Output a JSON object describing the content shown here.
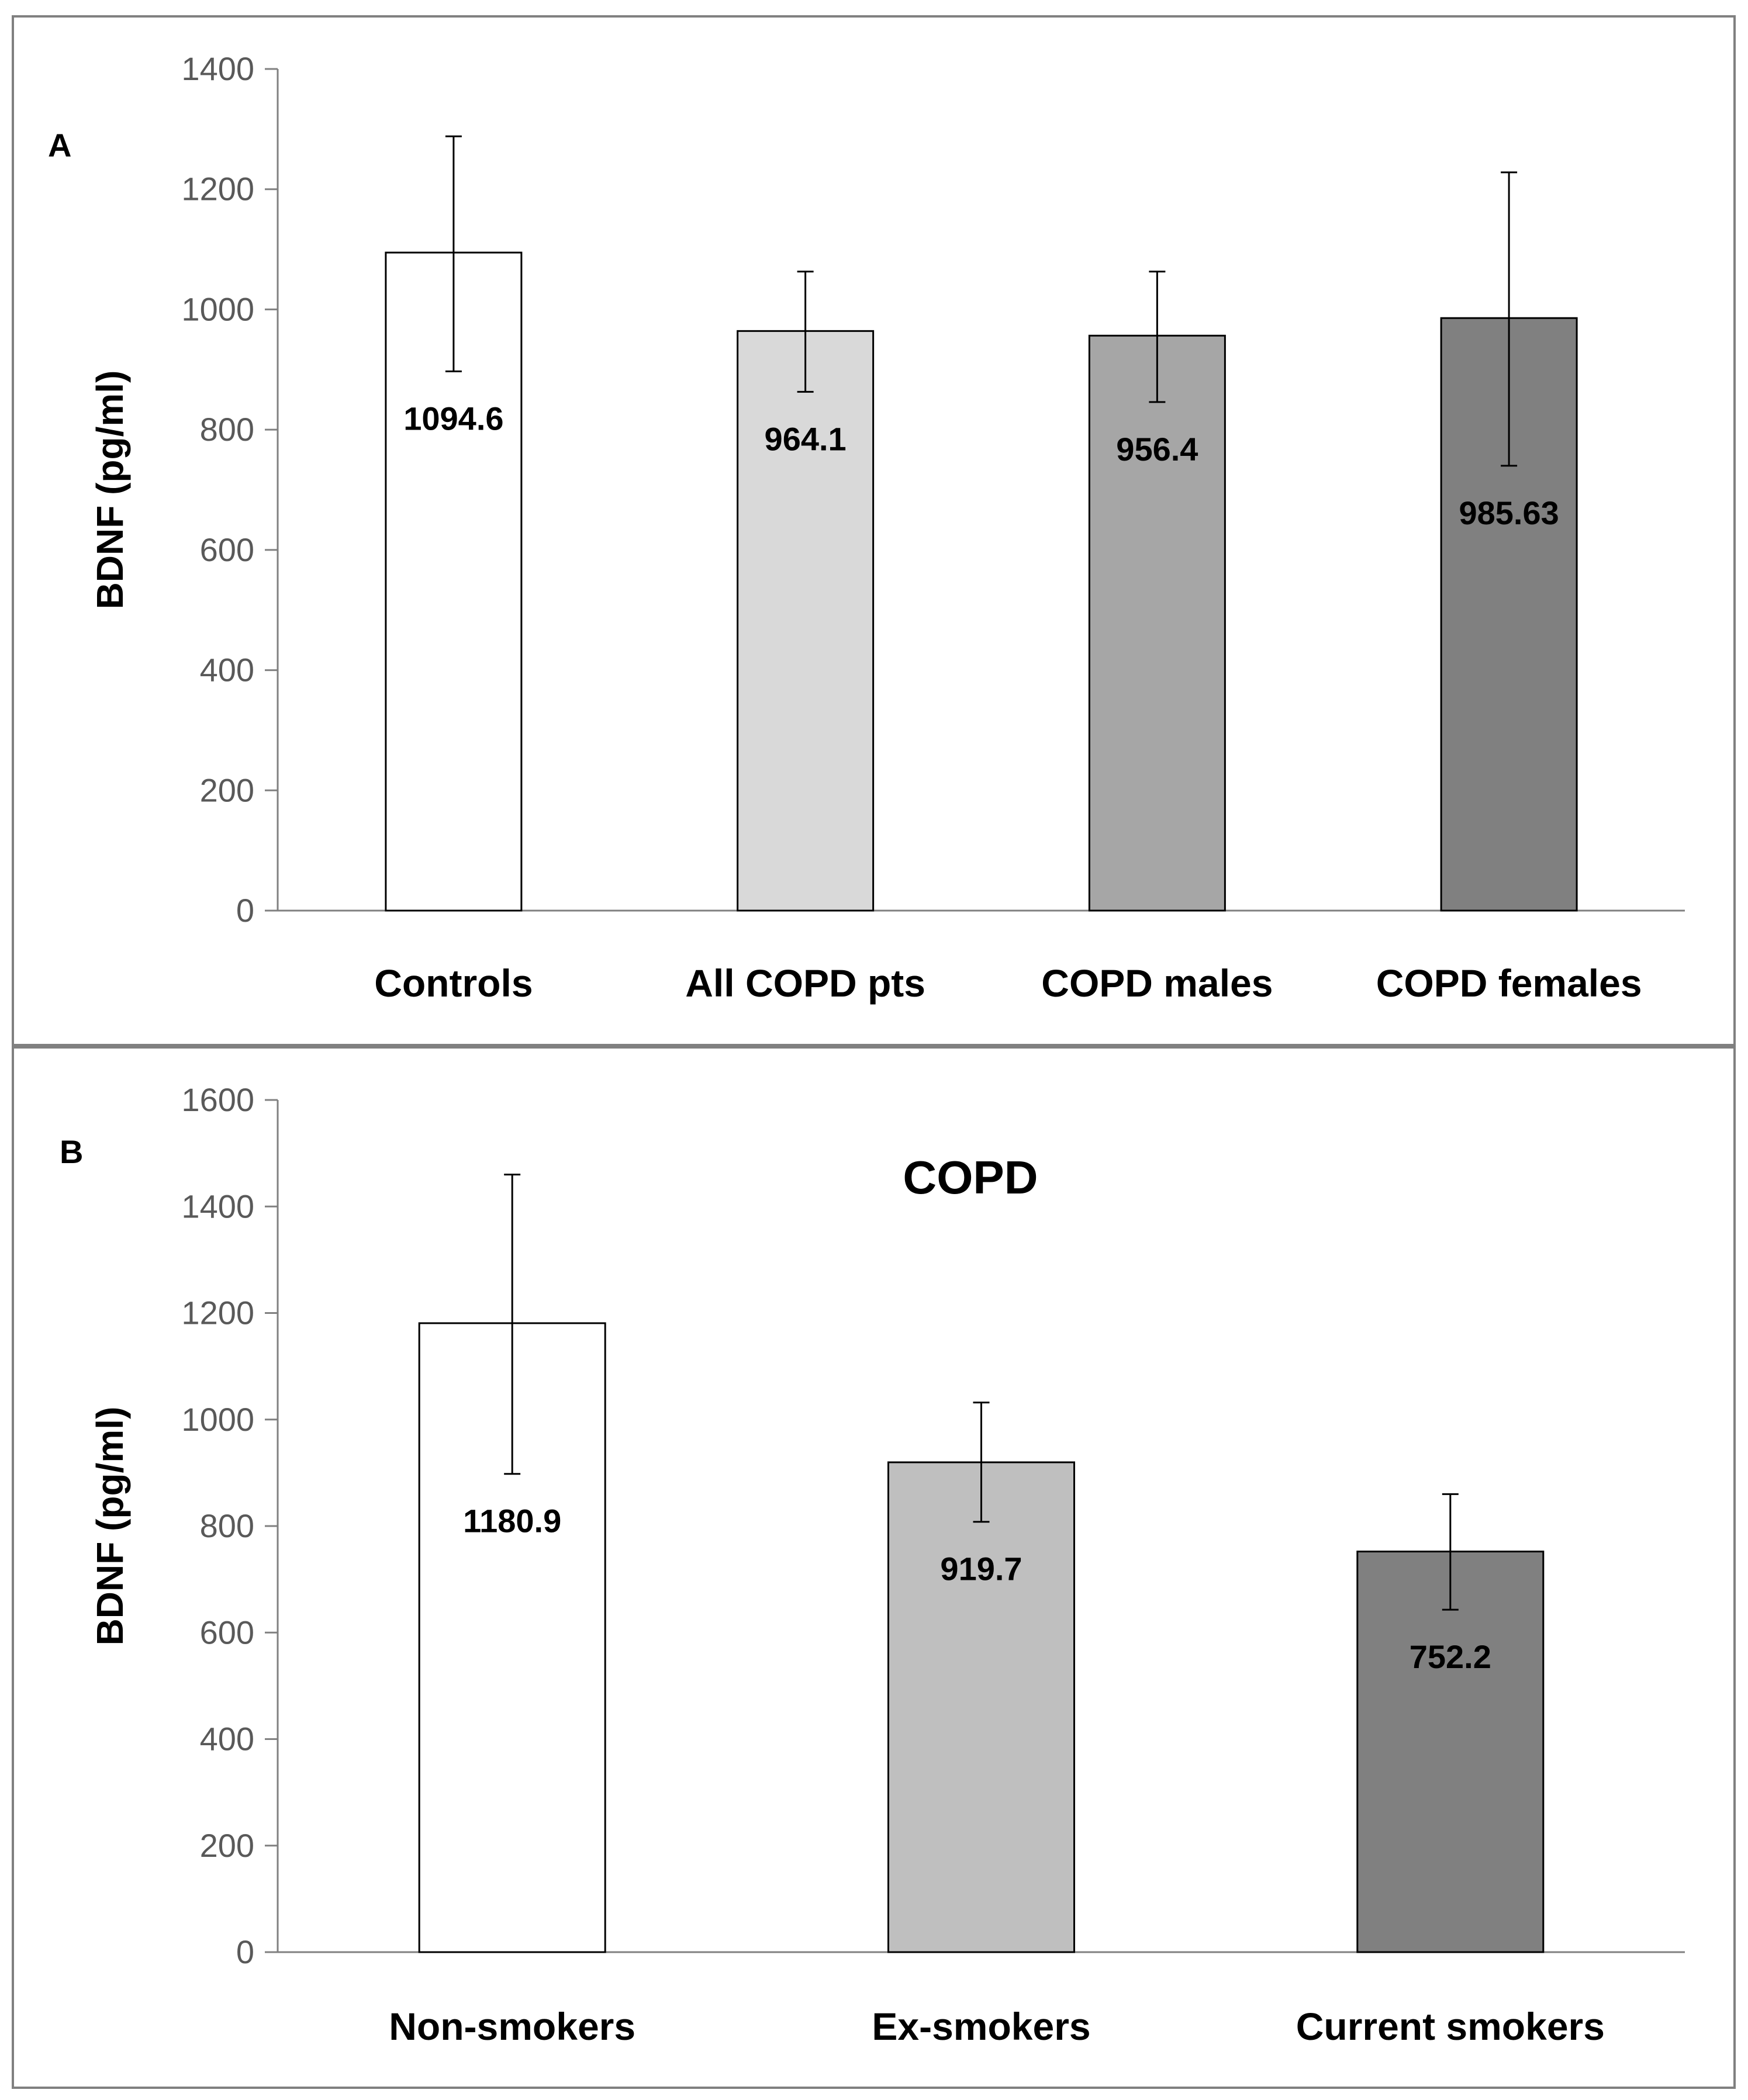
{
  "chart_data": [
    {
      "panel": "A",
      "type": "bar",
      "title": "",
      "ylabel": "BDNF (pg/ml)",
      "ylim": [
        0,
        1400
      ],
      "yticks": [
        0,
        200,
        400,
        600,
        800,
        1000,
        1200,
        1400
      ],
      "categories": [
        "Controls",
        "All COPD pts",
        "COPD males",
        "COPD females"
      ],
      "values": [
        1094.6,
        964.1,
        956.4,
        985.63
      ],
      "value_labels": [
        "1094.6",
        "964.1",
        "956.4",
        "985.63"
      ],
      "error_low": [
        897,
        863,
        846,
        740
      ],
      "error_high": [
        1288,
        1063,
        1063,
        1228
      ],
      "colors": [
        "#ffffff",
        "#d9d9d9",
        "#a6a6a6",
        "#808080"
      ],
      "grid": false
    },
    {
      "panel": "B",
      "type": "bar",
      "title": "COPD",
      "ylabel": "BDNF (pg/ml)",
      "ylim": [
        0,
        1600
      ],
      "yticks": [
        0,
        200,
        400,
        600,
        800,
        1000,
        1200,
        1400,
        1600
      ],
      "categories": [
        "Non-smokers",
        "Ex-smokers",
        "Current smokers"
      ],
      "values": [
        1180.9,
        919.7,
        752.2
      ],
      "value_labels": [
        "1180.9",
        "919.7",
        "752.2"
      ],
      "error_low": [
        898,
        808,
        643
      ],
      "error_high": [
        1460,
        1032,
        860
      ],
      "colors": [
        "#ffffff",
        "#bfbfbf",
        "#808080"
      ],
      "grid": false
    }
  ]
}
